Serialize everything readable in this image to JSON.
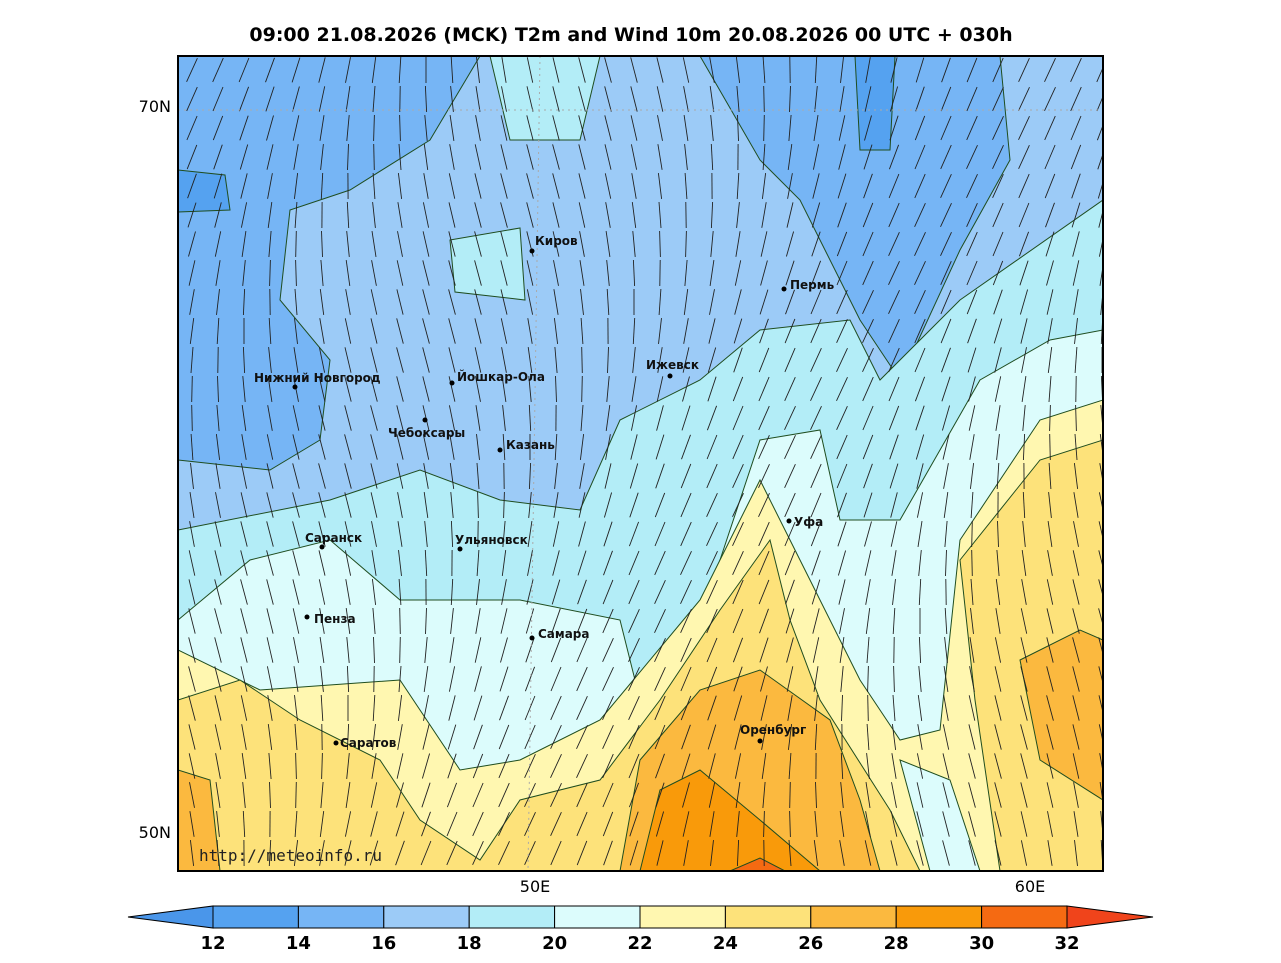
{
  "title": "09:00 21.08.2026 (MCK) T2m and Wind 10m 20.08.2026 00 UTC + 030h",
  "map": {
    "lat_labels": [
      "70N",
      "50N"
    ],
    "lon_labels": [
      "50E",
      "60E"
    ],
    "cities": [
      "Киров",
      "Пермь",
      "Нижний Новгород",
      "Йошкар-Ола",
      "Ижевск",
      "Чебоксары",
      "Казань",
      "Уфа",
      "Саранск",
      "Ульяновск",
      "Пенза",
      "Самара",
      "Оренбург",
      "Саратов"
    ],
    "credit": "http://meteoinfo.ru"
  },
  "colorbar": {
    "ticks": [
      12,
      14,
      16,
      18,
      20,
      22,
      24,
      26,
      28,
      30,
      32
    ],
    "colors": [
      "#4a96ea",
      "#55a2f0",
      "#76b5f5",
      "#9ccbf7",
      "#b3edf7",
      "#dcfcfc",
      "#fff7b0",
      "#fde27a",
      "#fbb93f",
      "#f99a0a",
      "#f56a12",
      "#f0441b"
    ]
  }
}
